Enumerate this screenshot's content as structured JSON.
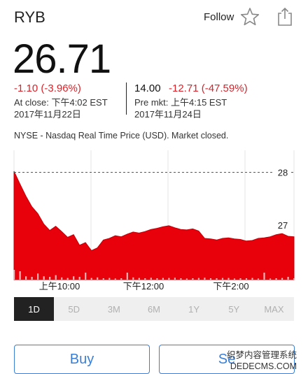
{
  "header": {
    "ticker": "RYB",
    "follow_label": "Follow",
    "star_icon": "star-icon",
    "share_icon": "share-icon"
  },
  "quote": {
    "price": "26.71",
    "close_change": "-1.10 (-3.96%)",
    "close_label": "At close: 下午4:02 EST",
    "close_date": "2017年11月22日",
    "pre_price": "14.00",
    "pre_change": "-12.71 (-47.59%)",
    "pre_label": "Pre mkt: 上午4:15 EST",
    "pre_date": "2017年11月24日",
    "market_note": "NYSE - Nasdaq Real Time Price (USD). Market closed."
  },
  "chart_data": {
    "type": "area",
    "color": "#e8000b",
    "reference_line": 28,
    "y_ticks": [
      "28",
      "27"
    ],
    "x_ticks": [
      "上午10:00",
      "下午12:00",
      "下午2:00"
    ],
    "values": [
      28.02,
      27.78,
      27.55,
      27.35,
      27.22,
      27.02,
      26.9,
      26.98,
      26.88,
      26.77,
      26.82,
      26.62,
      26.67,
      26.52,
      26.57,
      26.72,
      26.75,
      26.8,
      26.78,
      26.83,
      26.87,
      26.85,
      26.88,
      26.92,
      26.94,
      26.97,
      26.99,
      26.95,
      26.92,
      26.91,
      26.93,
      26.89,
      26.75,
      26.74,
      26.72,
      26.75,
      26.76,
      26.74,
      26.73,
      26.7,
      26.71,
      26.75,
      26.76,
      26.78,
      26.82,
      26.84,
      26.79,
      26.78
    ],
    "volume": [
      0.35,
      0.3,
      0.12,
      0.1,
      0.22,
      0.12,
      0.1,
      0.16,
      0.08,
      0.06,
      0.12,
      0.1,
      0.25,
      0.06,
      0.08,
      0.05,
      0.06,
      0.04,
      0.05,
      0.25,
      0.08,
      0.06,
      0.05,
      0.07,
      0.05,
      0.06,
      0.06,
      0.07,
      0.05,
      0.04,
      0.05,
      0.06,
      0.07,
      0.05,
      0.05,
      0.06,
      0.06,
      0.04,
      0.05,
      0.05,
      0.06,
      0.04,
      0.25,
      0.04,
      0.05,
      0.06,
      0.1,
      0.05
    ]
  },
  "range_tabs": [
    "1D",
    "5D",
    "3M",
    "6M",
    "1Y",
    "5Y",
    "MAX"
  ],
  "active_tab": "1D",
  "buttons": {
    "buy": "Buy",
    "sell": "Se"
  },
  "watermark": {
    "line1": "织梦内容管理系统",
    "line2": "DEDECMS.COM"
  }
}
